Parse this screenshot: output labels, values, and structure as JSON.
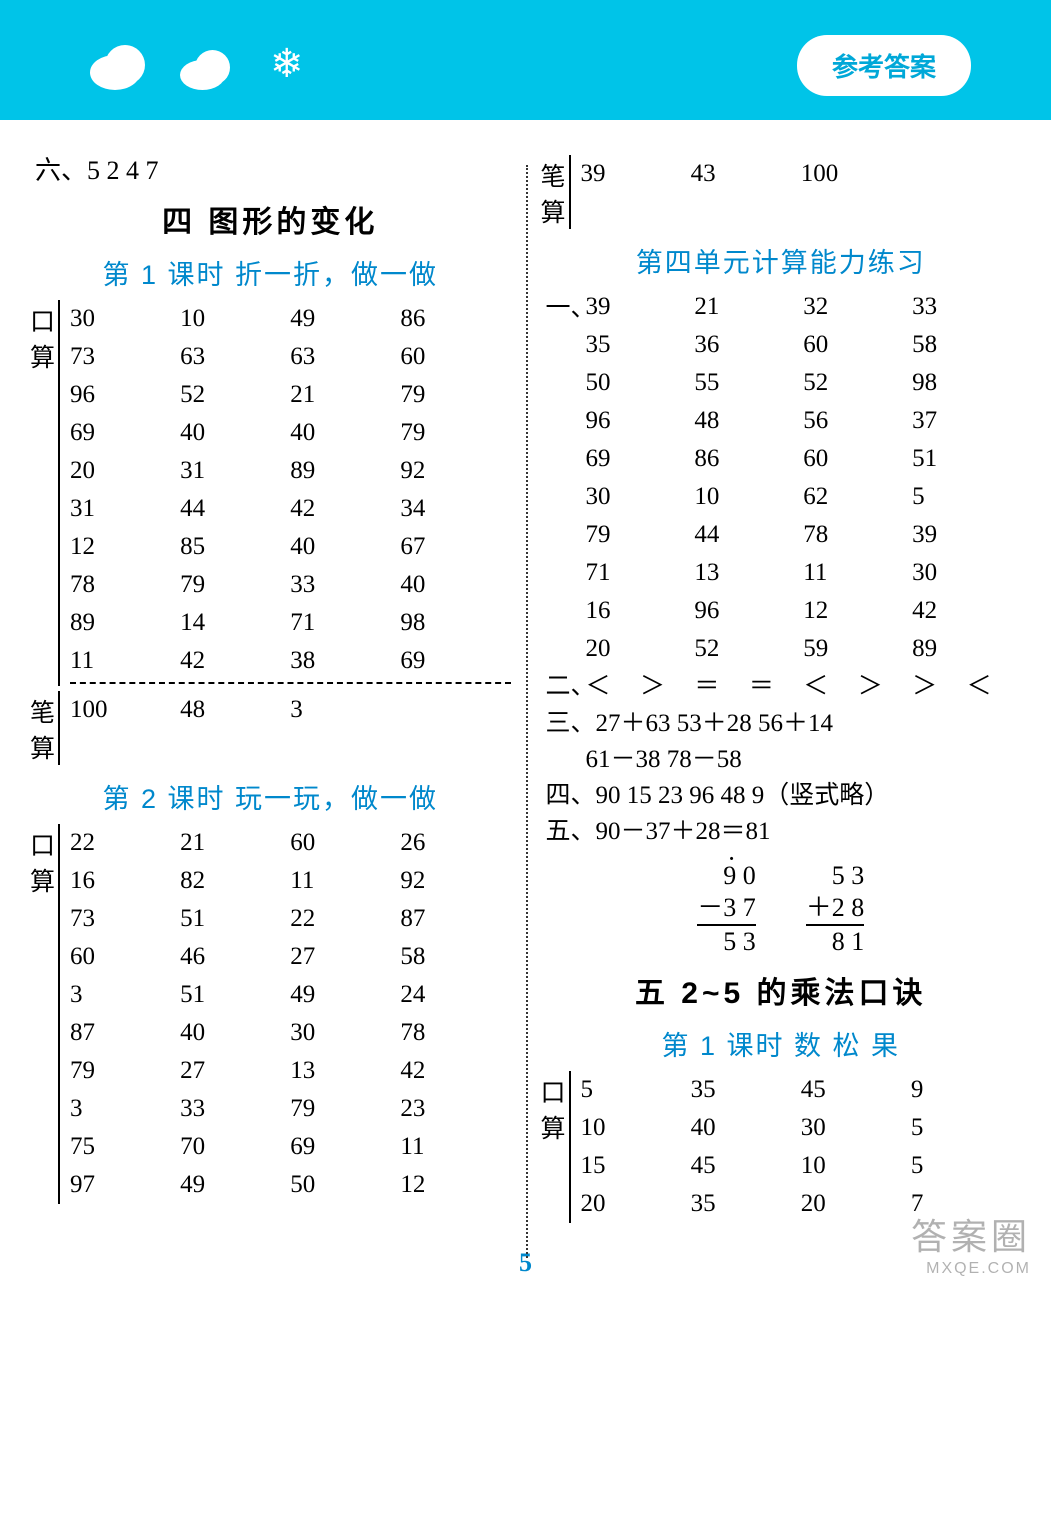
{
  "header": {
    "badge": "参考答案"
  },
  "left": {
    "topline": "六、5  2  4  7",
    "chapter": "四  图形的变化",
    "lesson1": {
      "title": "第 1 课时  折一折，做一做",
      "kousuan_label": "口算",
      "bisuan_label": "笔算",
      "kousuan": [
        [
          "30",
          "10",
          "49",
          "86"
        ],
        [
          "73",
          "63",
          "63",
          "60"
        ],
        [
          "96",
          "52",
          "21",
          "79"
        ],
        [
          "69",
          "40",
          "40",
          "79"
        ],
        [
          "20",
          "31",
          "89",
          "92"
        ],
        [
          "31",
          "44",
          "42",
          "34"
        ],
        [
          "12",
          "85",
          "40",
          "67"
        ],
        [
          "78",
          "79",
          "33",
          "40"
        ],
        [
          "89",
          "14",
          "71",
          "98"
        ],
        [
          "11",
          "42",
          "38",
          "69"
        ]
      ],
      "bisuan": [
        "100",
        "48",
        "3",
        ""
      ]
    },
    "lesson2": {
      "title": "第 2 课时  玩一玩，做一做",
      "kousuan_label": "口算",
      "kousuan": [
        [
          "22",
          "21",
          "60",
          "26"
        ],
        [
          "16",
          "82",
          "11",
          "92"
        ],
        [
          "73",
          "51",
          "22",
          "87"
        ],
        [
          "60",
          "46",
          "27",
          "58"
        ],
        [
          "3",
          "51",
          "49",
          "24"
        ],
        [
          "87",
          "40",
          "30",
          "78"
        ],
        [
          "79",
          "27",
          "13",
          "42"
        ],
        [
          "3",
          "33",
          "79",
          "23"
        ],
        [
          "75",
          "70",
          "69",
          "11"
        ],
        [
          "97",
          "49",
          "50",
          "12"
        ]
      ]
    }
  },
  "right": {
    "bisuan_cont_label": "笔算",
    "bisuan_cont": [
      "39",
      "43",
      "100",
      ""
    ],
    "unit4": {
      "title": "第四单元计算能力练习",
      "q1_label": "一、",
      "q1": [
        [
          "39",
          "21",
          "32",
          "33"
        ],
        [
          "35",
          "36",
          "60",
          "58"
        ],
        [
          "50",
          "55",
          "52",
          "98"
        ],
        [
          "96",
          "48",
          "56",
          "37"
        ],
        [
          "69",
          "86",
          "60",
          "51"
        ],
        [
          "30",
          "10",
          "62",
          "5"
        ],
        [
          "79",
          "44",
          "78",
          "39"
        ],
        [
          "71",
          "13",
          "11",
          "30"
        ],
        [
          "16",
          "96",
          "12",
          "42"
        ],
        [
          "20",
          "52",
          "59",
          "89"
        ]
      ],
      "q2_label": "二、",
      "q2": [
        "＜",
        "＞",
        "＝",
        "＝",
        "＜",
        "＞",
        "＞",
        "＜"
      ],
      "q3_label": "三、",
      "q3_line1": "27＋63  53＋28  56＋14",
      "q3_line2": "61－38  78－58",
      "q4": "四、90 15 23 96 48 9（竖式略）",
      "q5": "五、90－37＋28＝81",
      "vcalc1": {
        "a": "9 0",
        "b": "－3 7",
        "r": "5 3"
      },
      "vcalc2": {
        "a": "5 3",
        "b": "＋2 8",
        "r": "8 1"
      }
    },
    "chapter5": "五  2~5 的乘法口诀",
    "lesson5_1": {
      "title": "第 1 课时  数  松  果",
      "kousuan_label": "口算",
      "kousuan": [
        [
          "5",
          "35",
          "45",
          "9"
        ],
        [
          "10",
          "40",
          "30",
          "5"
        ],
        [
          "15",
          "45",
          "10",
          "5"
        ],
        [
          "20",
          "35",
          "20",
          "7"
        ]
      ]
    }
  },
  "page": "5",
  "watermark": {
    "l1": "答案圈",
    "l2": "MXQE.COM"
  }
}
